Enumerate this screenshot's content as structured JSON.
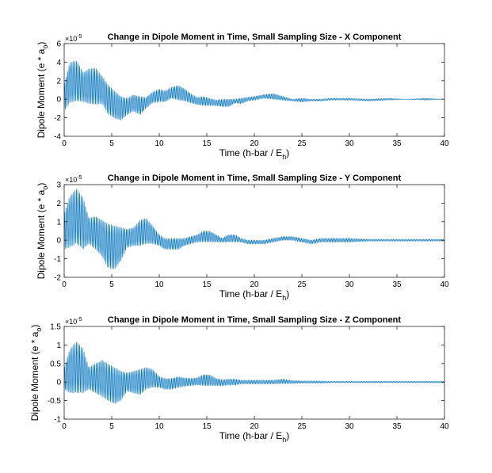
{
  "chart_data": [
    {
      "type": "line",
      "title": "Change in Dipole Moment in Time, Small Sampling Size - X Component",
      "xlabel": {
        "main": "Time (h-bar / E",
        "sub": "h",
        "close": ")"
      },
      "ylabel": {
        "main": "Dipole Moment (e * a",
        "sub": "o",
        "close": ")"
      },
      "y_multiplier": {
        "base": "×10",
        "exp": "-5"
      },
      "xlim": [
        0,
        40
      ],
      "ylim": [
        -4,
        6
      ],
      "xticks": [
        0,
        5,
        10,
        15,
        20,
        25,
        30,
        35,
        40
      ],
      "yticks": [
        -4,
        -2,
        0,
        2,
        4,
        6
      ],
      "ytick_labels": [
        "-4",
        "-2",
        "0",
        "2",
        "4",
        "6"
      ],
      "color": "#0072BD",
      "series": [
        {
          "x": [
            0.0,
            0.6,
            1.3,
            2.0,
            2.6,
            3.3,
            4.0,
            4.6,
            5.3,
            6.0,
            6.6,
            7.3,
            8.0,
            8.6,
            9.3,
            10.0,
            10.6,
            11.3,
            12.0,
            12.6,
            13.3,
            14.0,
            14.6,
            15.3,
            16.0,
            16.6,
            17.3,
            18.0,
            18.6,
            19.3,
            20.0,
            21.0,
            22.0,
            23.0,
            24.0,
            25.0,
            26.0,
            27.0,
            28.0,
            29.0,
            30.0,
            32.0,
            34.0,
            36.0,
            38.0,
            40.0
          ],
          "center": [
            0.2,
            1.8,
            2.0,
            1.3,
            1.4,
            1.4,
            1.0,
            0.0,
            -0.6,
            -1.0,
            -0.8,
            -0.4,
            -0.7,
            -0.4,
            0.2,
            0.4,
            0.3,
            0.7,
            0.7,
            0.5,
            0.1,
            -0.2,
            -0.2,
            -0.3,
            -0.4,
            -0.4,
            -0.4,
            -0.2,
            -0.2,
            0.0,
            0.1,
            0.3,
            0.3,
            0.1,
            -0.1,
            -0.1,
            -0.1,
            -0.1,
            0.0,
            0.0,
            0.0,
            -0.1,
            0.0,
            0.0,
            0.0,
            0.0
          ],
          "amplitude": [
            1.5,
            2.2,
            2.2,
            1.6,
            1.9,
            2.0,
            1.5,
            1.6,
            1.5,
            1.3,
            0.9,
            0.9,
            1.0,
            0.6,
            0.6,
            0.7,
            0.6,
            0.6,
            0.8,
            0.7,
            0.5,
            0.4,
            0.5,
            0.4,
            0.3,
            0.4,
            0.4,
            0.2,
            0.3,
            0.2,
            0.2,
            0.2,
            0.3,
            0.2,
            0.1,
            0.2,
            0.1,
            0.1,
            0.1,
            0.1,
            0.1,
            0.1,
            0.1,
            0.0,
            0.1,
            0.0
          ]
        }
      ]
    },
    {
      "type": "line",
      "title": "Change in Dipole Moment in Time, Small Sampling Size - Y Component",
      "xlabel": {
        "main": "Time (h-bar / E",
        "sub": "h",
        "close": ")"
      },
      "ylabel": {
        "main": "Dipole Moment (e * a",
        "sub": "o",
        "close": ")"
      },
      "y_multiplier": {
        "base": "×10",
        "exp": "-5"
      },
      "xlim": [
        0,
        40
      ],
      "ylim": [
        -2,
        3
      ],
      "xticks": [
        0,
        5,
        10,
        15,
        20,
        25,
        30,
        35,
        40
      ],
      "yticks": [
        -2,
        -1,
        0,
        1,
        2,
        3
      ],
      "ytick_labels": [
        "-2",
        "-1",
        "0",
        "1",
        "2",
        "3"
      ],
      "color": "#0072BD",
      "series": [
        {
          "x": [
            0.0,
            0.6,
            1.3,
            2.0,
            2.6,
            3.3,
            4.0,
            4.6,
            5.3,
            6.0,
            6.6,
            7.3,
            8.0,
            8.6,
            9.3,
            10.0,
            10.6,
            11.3,
            12.0,
            12.6,
            13.3,
            14.0,
            14.6,
            15.3,
            16.0,
            16.6,
            17.3,
            18.0,
            18.6,
            19.3,
            20.0,
            21.0,
            22.0,
            23.0,
            24.0,
            25.0,
            26.0,
            27.0,
            28.0,
            29.0,
            30.0,
            32.0,
            34.0,
            36.0,
            38.0,
            40.0
          ],
          "center": [
            0.5,
            1.0,
            1.3,
            0.9,
            0.5,
            0.4,
            0.1,
            -0.3,
            -0.4,
            -0.2,
            0.1,
            0.2,
            0.4,
            0.5,
            0.3,
            0.0,
            -0.2,
            -0.2,
            -0.2,
            -0.1,
            0.0,
            0.1,
            0.2,
            0.2,
            0.1,
            0.0,
            0.1,
            0.1,
            0.0,
            -0.1,
            -0.1,
            -0.1,
            0.0,
            0.1,
            0.1,
            0.0,
            -0.1,
            0.0,
            0.0,
            0.0,
            0.0,
            0.0,
            0.0,
            0.0,
            0.0,
            0.0
          ],
          "amplitude": [
            1.0,
            1.4,
            1.5,
            1.4,
            0.7,
            0.9,
            1.0,
            1.2,
            1.2,
            0.9,
            0.5,
            0.5,
            0.7,
            0.7,
            0.5,
            0.3,
            0.3,
            0.3,
            0.3,
            0.2,
            0.2,
            0.2,
            0.3,
            0.3,
            0.2,
            0.1,
            0.2,
            0.2,
            0.1,
            0.1,
            0.1,
            0.1,
            0.1,
            0.1,
            0.1,
            0.1,
            0.1,
            0.1,
            0.1,
            0.1,
            0.1,
            0.05,
            0.05,
            0.05,
            0.05,
            0.05
          ]
        }
      ]
    },
    {
      "type": "line",
      "title": "Change in Dipole Moment in Time, Small Sampling Size - Z Component",
      "xlabel": {
        "main": "Time (h-bar / E",
        "sub": "h",
        "close": ")"
      },
      "ylabel": {
        "main": "Dipole Moment (e * a",
        "sub": "o",
        "close": ")"
      },
      "y_multiplier": {
        "base": "×10",
        "exp": "-5"
      },
      "xlim": [
        0,
        40
      ],
      "ylim": [
        -1,
        1.5
      ],
      "xticks": [
        0,
        5,
        10,
        15,
        20,
        25,
        30,
        35,
        40
      ],
      "yticks": [
        -1,
        -0.5,
        0,
        0.5,
        1,
        1.5
      ],
      "ytick_labels": [
        "-1",
        "-0.5",
        "0",
        "0.5",
        "1",
        "1.5"
      ],
      "color": "#0072BD",
      "series": [
        {
          "x": [
            0.0,
            0.6,
            1.3,
            2.0,
            2.6,
            3.3,
            4.0,
            4.6,
            5.3,
            6.0,
            6.6,
            7.3,
            8.0,
            8.6,
            9.3,
            10.0,
            10.6,
            11.3,
            12.0,
            12.6,
            13.3,
            14.0,
            14.6,
            15.3,
            16.0,
            16.6,
            17.3,
            18.0,
            18.6,
            19.3,
            20.0,
            21.0,
            22.0,
            23.0,
            24.0,
            25.0,
            26.0,
            27.0,
            28.0,
            29.0,
            30.0,
            32.0,
            34.0,
            36.0,
            38.0,
            40.0
          ],
          "center": [
            0.1,
            0.3,
            0.4,
            0.3,
            0.1,
            0.1,
            0.1,
            0.0,
            -0.1,
            -0.1,
            0.0,
            0.0,
            0.0,
            0.1,
            0.1,
            0.0,
            -0.05,
            -0.05,
            0.0,
            0.0,
            0.0,
            0.02,
            0.05,
            0.05,
            0.0,
            -0.02,
            0.0,
            0.0,
            0.0,
            0.0,
            0.0,
            0.0,
            0.0,
            0.02,
            0.0,
            0.0,
            0.0,
            0.0,
            0.0,
            0.0,
            0.0,
            0.0,
            0.0,
            0.0,
            0.0,
            0.0
          ],
          "amplitude": [
            0.3,
            0.6,
            0.7,
            0.6,
            0.3,
            0.4,
            0.5,
            0.5,
            0.5,
            0.4,
            0.25,
            0.3,
            0.35,
            0.3,
            0.25,
            0.15,
            0.15,
            0.15,
            0.15,
            0.12,
            0.1,
            0.1,
            0.15,
            0.15,
            0.1,
            0.08,
            0.08,
            0.08,
            0.05,
            0.05,
            0.05,
            0.05,
            0.05,
            0.06,
            0.04,
            0.03,
            0.03,
            0.03,
            0.02,
            0.02,
            0.02,
            0.02,
            0.02,
            0.02,
            0.02,
            0.02
          ]
        }
      ]
    }
  ]
}
